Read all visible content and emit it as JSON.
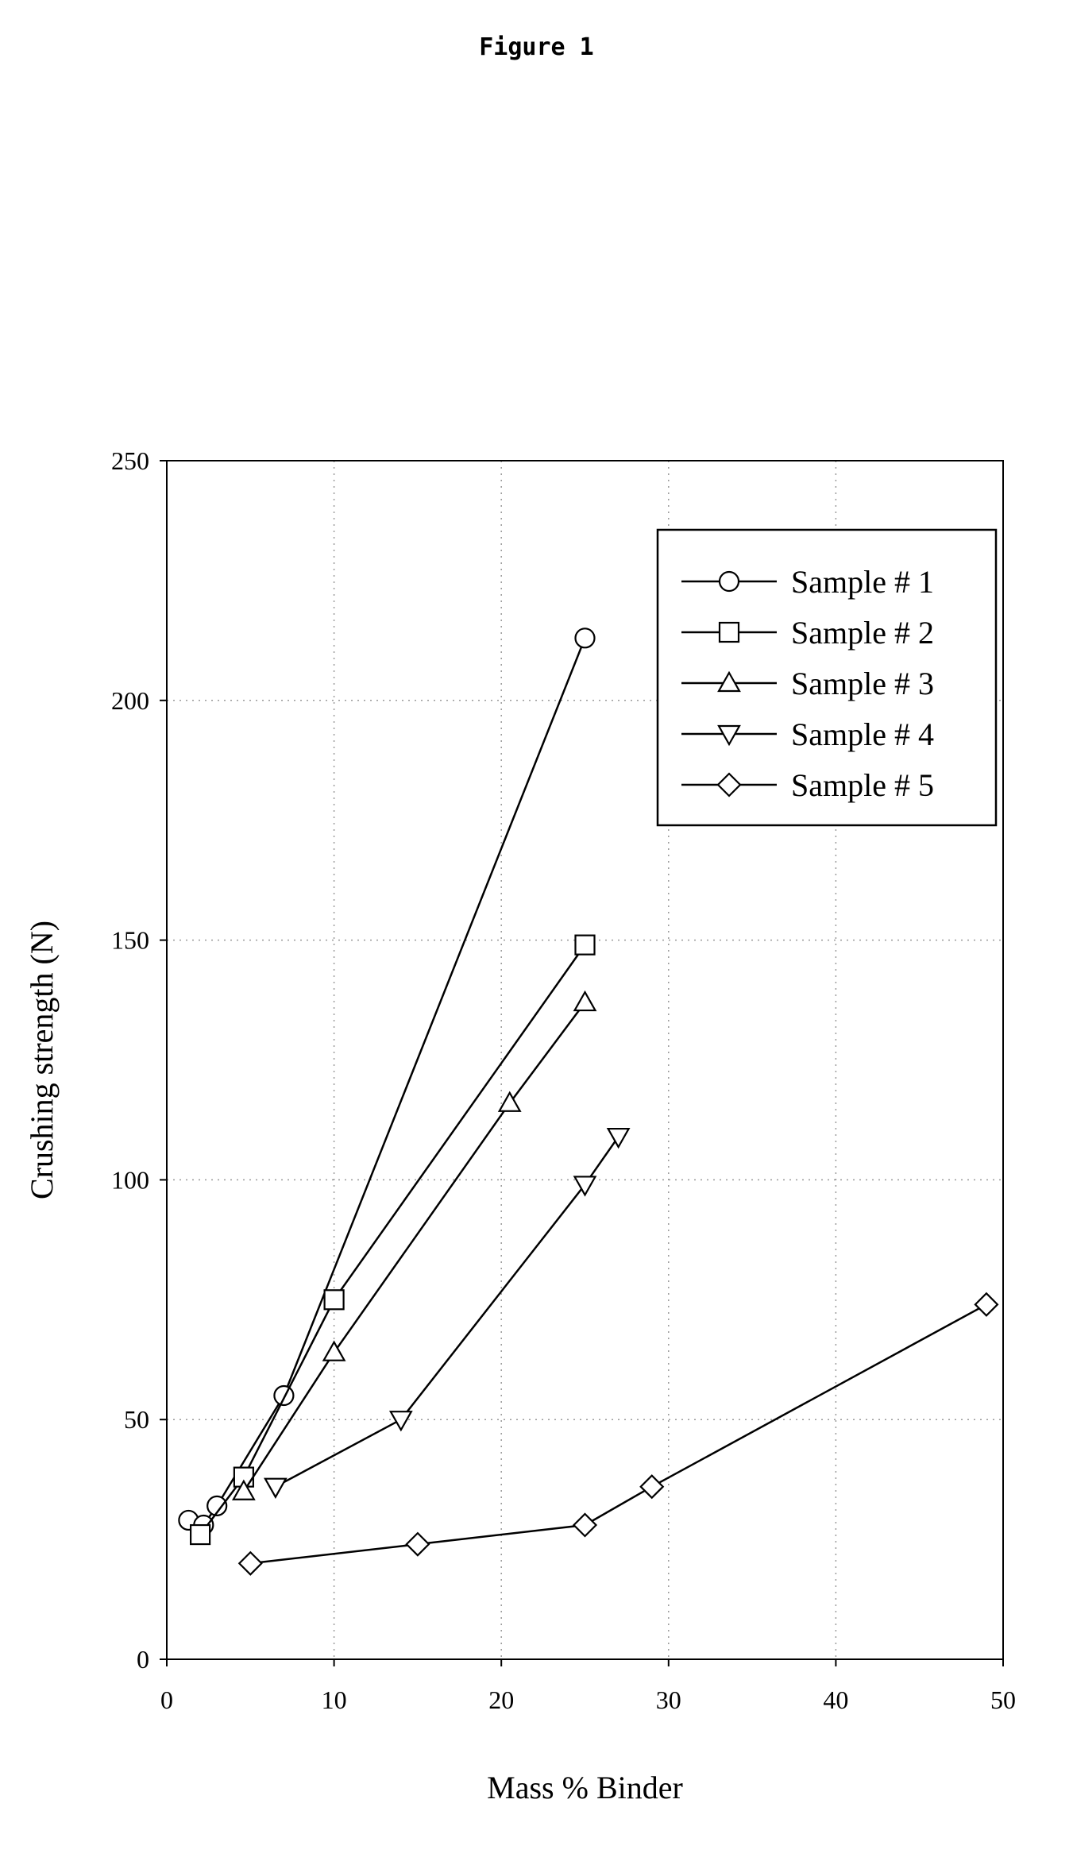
{
  "figure": {
    "title": "Figure 1"
  },
  "chart_data": {
    "type": "line",
    "title": "",
    "xlabel": "Mass % Binder",
    "ylabel": "Crushing strength (N)",
    "xlim": [
      0,
      50
    ],
    "ylim": [
      0,
      250
    ],
    "xticks": [
      0,
      10,
      20,
      30,
      40,
      50
    ],
    "yticks": [
      0,
      50,
      100,
      150,
      200,
      250
    ],
    "grid": true,
    "legend_position": "top-right",
    "series": [
      {
        "name": "Sample # 1",
        "marker": "circle",
        "x": [
          1.3,
          2.2,
          3,
          7,
          25
        ],
        "y": [
          29,
          28,
          32,
          55,
          213
        ]
      },
      {
        "name": "Sample # 2",
        "marker": "square",
        "x": [
          2,
          4.6,
          10,
          25
        ],
        "y": [
          26,
          38,
          75,
          149
        ]
      },
      {
        "name": "Sample # 3",
        "marker": "triangle-up",
        "x": [
          4.6,
          10,
          20.5,
          25
        ],
        "y": [
          35,
          64,
          116,
          137
        ]
      },
      {
        "name": "Sample # 4",
        "marker": "triangle-down",
        "x": [
          6.5,
          14,
          25,
          27
        ],
        "y": [
          36,
          50,
          99,
          109
        ]
      },
      {
        "name": "Sample # 5",
        "marker": "diamond",
        "x": [
          5,
          15,
          25,
          29,
          49
        ],
        "y": [
          20,
          24,
          28,
          36,
          74
        ]
      }
    ]
  }
}
